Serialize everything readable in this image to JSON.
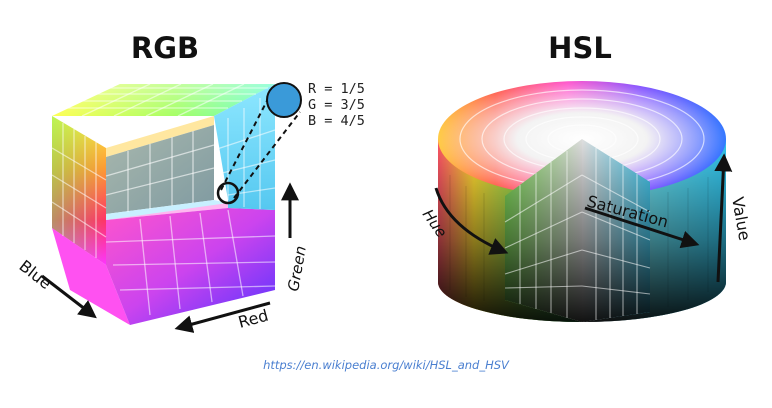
{
  "rgb": {
    "title": "RGB",
    "readout": {
      "r": "R = 1/5",
      "g": "G = 3/5",
      "b": "B = 4/5"
    },
    "axes": {
      "blue": "Blue",
      "red": "Red",
      "green": "Green"
    },
    "sample_color": "#3a9ad9"
  },
  "hsl": {
    "title": "HSL",
    "axes": {
      "hue": "Hue",
      "saturation": "Saturation",
      "value": "Value"
    }
  },
  "source": {
    "url": "https://en.wikipedia.org/wiki/HSL_and_HSV"
  }
}
